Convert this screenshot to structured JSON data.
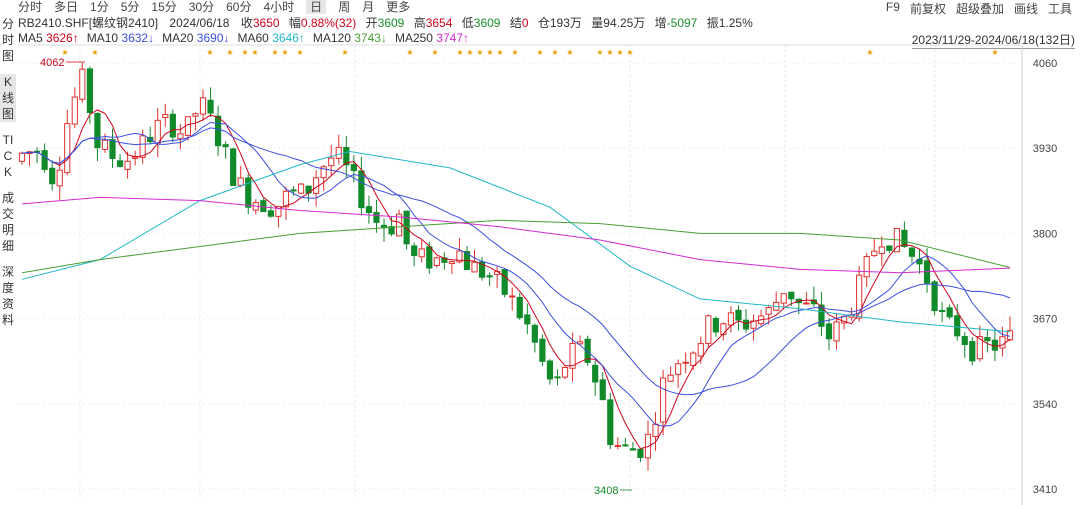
{
  "tabs": [
    "分时",
    "多日",
    "1分",
    "5分",
    "15分",
    "30分",
    "60分",
    "4小时",
    "日",
    "周",
    "月",
    "更多"
  ],
  "active_tab": "日",
  "toolbar_right": [
    "F9",
    "前复权",
    "超级叠加",
    "画线",
    "工具"
  ],
  "info": {
    "symbol": "RB2410.SHF[螺纹钢2410]",
    "date": "2024/06/18",
    "close_label": "收",
    "close": "3650",
    "change_label": "幅",
    "change": "0.88%(32)",
    "open_label": "开",
    "open": "3609",
    "high_label": "高",
    "high": "3654",
    "low_label": "低",
    "low": "3609",
    "settle_label": "结",
    "settle": "0",
    "oi_label": "仓",
    "oi": "193万",
    "vol_label": "量",
    "vol": "94.25万",
    "inc_label": "增",
    "inc": "-5097",
    "amp_label": "振",
    "amp": "1.25%"
  },
  "ma": [
    {
      "name": "MA5",
      "value": "3626↑",
      "color": "#d0021b"
    },
    {
      "name": "MA10",
      "value": "3632↓",
      "color": "#3b4ee0"
    },
    {
      "name": "MA20",
      "value": "3690↓",
      "color": "#3b4ee0"
    },
    {
      "name": "MA60",
      "value": "3646↑",
      "color": "#20b7c9"
    },
    {
      "name": "MA120",
      "value": "3743↓",
      "color": "#4a9e35"
    },
    {
      "name": "MA250",
      "value": "3747↑",
      "color": "#d22bd2"
    }
  ],
  "sidebar": [
    "分时图",
    "K线图",
    "TICK",
    "成交明细",
    "深度资料"
  ],
  "date_range": "2023/11/29-2024/06/18(132日)",
  "chart_data": {
    "type": "candlestick",
    "y_ticks": [
      4060,
      3930,
      3800,
      3670,
      3540,
      3410
    ],
    "ylim": [
      3410,
      4060
    ],
    "high_marker": "4062",
    "low_marker": "3408",
    "star_marker": "★"
  }
}
